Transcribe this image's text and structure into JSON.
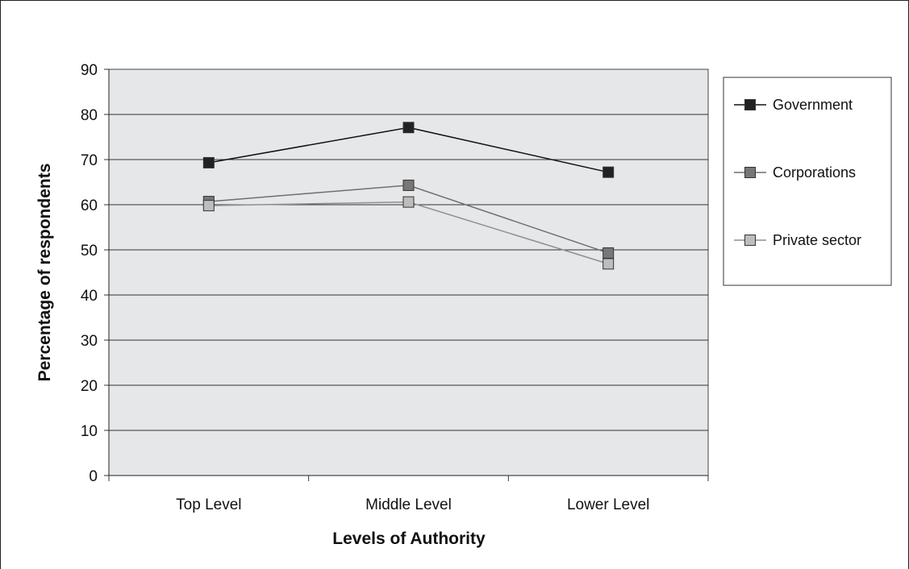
{
  "chart_data": {
    "type": "line",
    "title": "",
    "xlabel": "Levels of Authority",
    "ylabel": "Percentage of respondents",
    "categories": [
      "Top Level",
      "Middle Level",
      "Lower Level"
    ],
    "ylim": [
      0,
      90
    ],
    "yticks": [
      0,
      10,
      20,
      30,
      40,
      50,
      60,
      70,
      80,
      90
    ],
    "grid": true,
    "legend_position": "right",
    "series": [
      {
        "name": "Government",
        "values": [
          69.3,
          77.1,
          67.2
        ],
        "color": "#222222",
        "line_color": "#111111"
      },
      {
        "name": "Corporations",
        "values": [
          60.7,
          64.3,
          49.3
        ],
        "color": "#777777",
        "line_color": "#6f6f6f"
      },
      {
        "name": "Private sector",
        "values": [
          59.8,
          60.6,
          46.9
        ],
        "color": "#bdbdbd",
        "line_color": "#8f8f8f"
      }
    ]
  }
}
